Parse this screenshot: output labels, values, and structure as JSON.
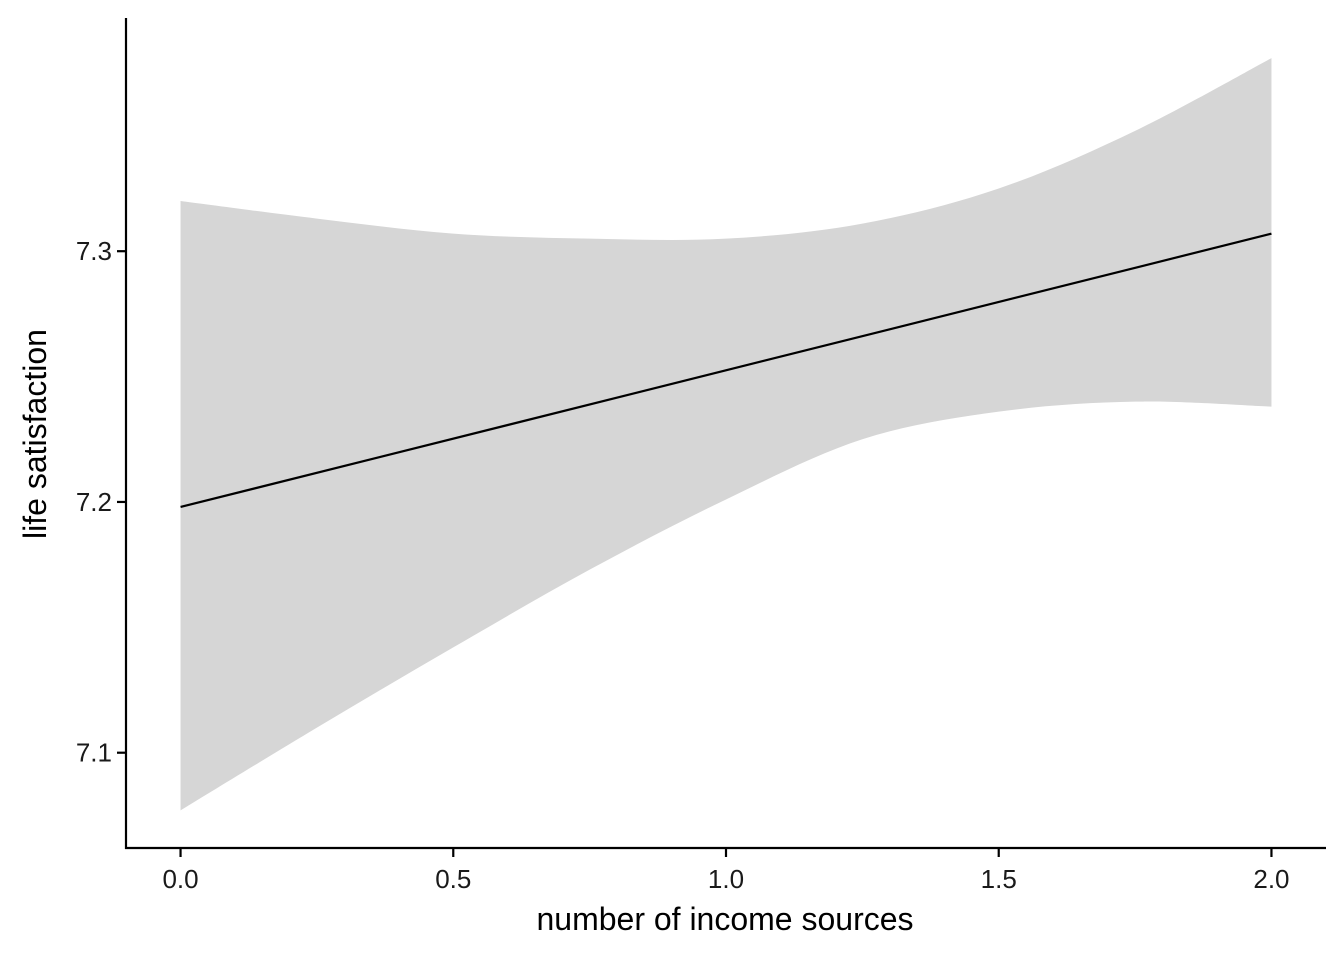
{
  "chart_data": {
    "type": "line",
    "title": "",
    "xlabel": "number of income sources",
    "ylabel": "life satisfaction",
    "xlim": [
      -0.1,
      2.1
    ],
    "ylim": [
      7.062,
      7.393
    ],
    "x_ticks": [
      0.0,
      0.5,
      1.0,
      1.5,
      2.0
    ],
    "x_tick_labels": [
      "0.0",
      "0.5",
      "1.0",
      "1.5",
      "2.0"
    ],
    "y_ticks": [
      7.1,
      7.2,
      7.3
    ],
    "y_tick_labels": [
      "7.1",
      "7.2",
      "7.3"
    ],
    "grid": false,
    "legend": "none",
    "series": [
      {
        "x": [
          0.0,
          2.0
        ],
        "y": [
          7.198,
          7.307
        ],
        "color": "#000000"
      }
    ],
    "confidence_band": {
      "x": [
        0.0,
        0.25,
        0.5,
        0.75,
        1.0,
        1.25,
        1.5,
        1.75,
        2.0
      ],
      "upper": [
        7.32,
        7.313,
        7.307,
        7.305,
        7.305,
        7.311,
        7.325,
        7.348,
        7.377
      ],
      "lower": [
        7.077,
        7.11,
        7.142,
        7.173,
        7.201,
        7.225,
        7.236,
        7.24,
        7.238
      ],
      "color": "#d6d6d6"
    }
  }
}
